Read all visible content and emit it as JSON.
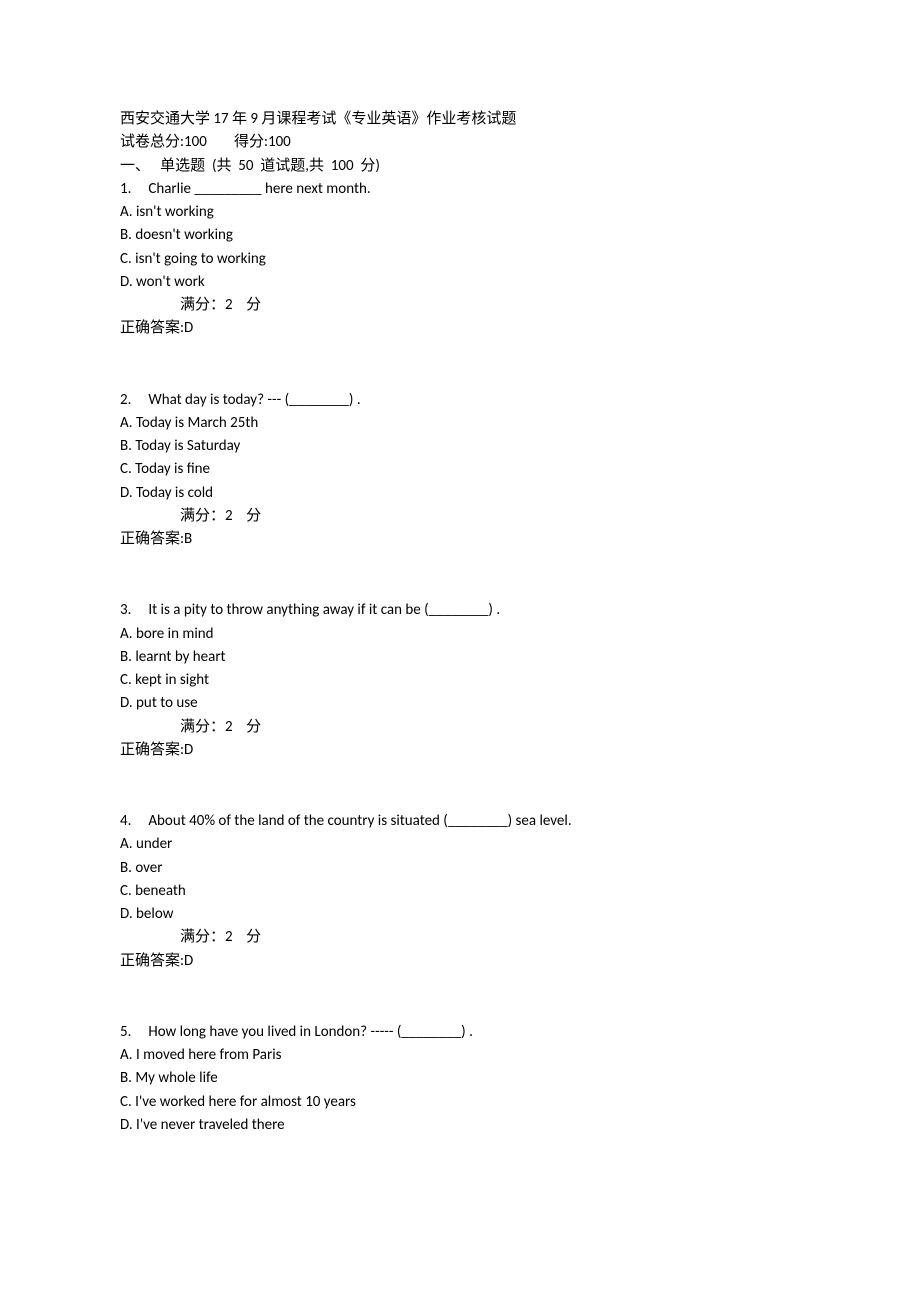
{
  "header": {
    "title": "西安交通大学 17 年 9 月课程考试《专业英语》作业考核试题",
    "totals": "试卷总分:100        得分:100",
    "section": "一、   单选题  (共  50  道试题,共  100  分)"
  },
  "q1": {
    "stem": "1.     Charlie _________ here next month.",
    "a": "A. isn't working",
    "b": "B. doesn't working",
    "c": "C. isn't going to working",
    "d": "D. won't work",
    "points": "满分：2    分",
    "answer": "正确答案:D"
  },
  "q2": {
    "stem": "2.     What day is today? --- (________) .",
    "a": "A. Today is March 25th",
    "b": "B. Today is Saturday",
    "c": "C. Today is fine",
    "d": "D. Today is cold",
    "points": "满分：2    分",
    "answer": "正确答案:B"
  },
  "q3": {
    "stem": "3.     It is a pity to throw anything away if it can be (________) .",
    "a": "A. bore in mind",
    "b": "B. learnt by heart",
    "c": "C. kept in sight",
    "d": "D. put to use",
    "points": "满分：2    分",
    "answer": "正确答案:D"
  },
  "q4": {
    "stem": "4.     About 40% of the land of the country is situated (________) sea level.",
    "a": "A. under",
    "b": "B. over",
    "c": "C. beneath",
    "d": "D. below",
    "points": "满分：2    分",
    "answer": "正确答案:D"
  },
  "q5": {
    "stem": "5.     How long have you lived in London? ----- (________) .",
    "a": "A. I moved here from Paris",
    "b": "B. My whole life",
    "c": "C. I've worked here for almost 10 years",
    "d": "D. I've never traveled there"
  }
}
